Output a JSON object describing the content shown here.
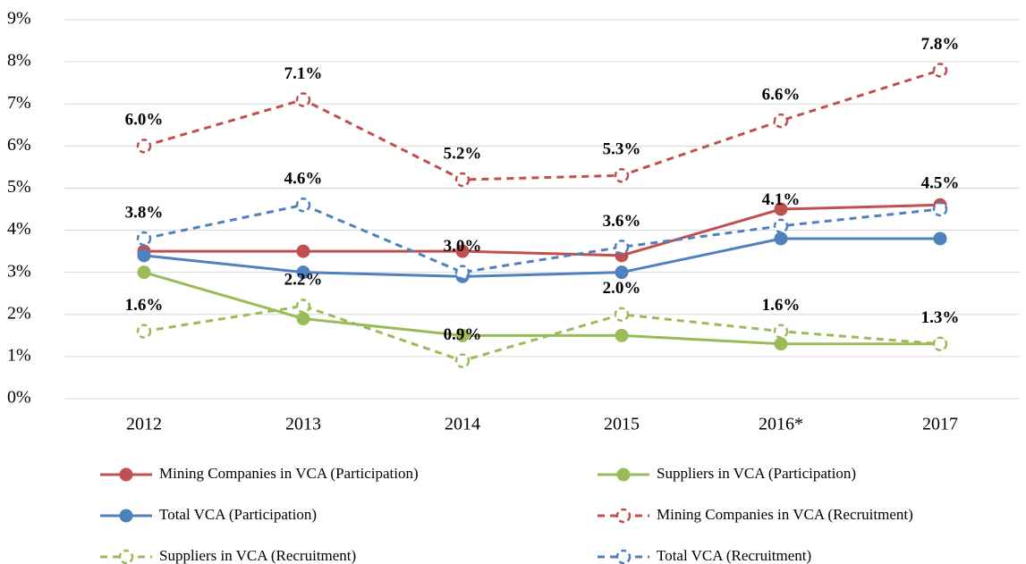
{
  "chart_data": {
    "type": "line",
    "categories": [
      "2012",
      "2013",
      "2014",
      "2015",
      "2016*",
      "2017"
    ],
    "ylim": [
      0,
      9
    ],
    "yticks": [
      {
        "value": 0,
        "label": "0%"
      },
      {
        "value": 1,
        "label": "1%"
      },
      {
        "value": 2,
        "label": "2%"
      },
      {
        "value": 3,
        "label": "3%"
      },
      {
        "value": 4,
        "label": "4%"
      },
      {
        "value": 5,
        "label": "5%"
      },
      {
        "value": 6,
        "label": "6%"
      },
      {
        "value": 7,
        "label": "7%"
      },
      {
        "value": 8,
        "label": "8%"
      },
      {
        "value": 9,
        "label": "9%"
      }
    ],
    "grid": true,
    "legend": "bottom",
    "series": [
      {
        "name": "Mining Companies in VCA (Participation)",
        "color": "#c0504d",
        "line_style": "solid",
        "values": [
          3.5,
          3.5,
          3.5,
          3.4,
          4.5,
          4.6
        ]
      },
      {
        "name": "Suppliers in VCA (Participation)",
        "color": "#9bbb59",
        "line_style": "solid",
        "values": [
          3.0,
          1.9,
          1.5,
          1.5,
          1.3,
          1.3
        ]
      },
      {
        "name": "Total VCA (Participation)",
        "color": "#4f81bd",
        "line_style": "solid",
        "values": [
          3.4,
          3.0,
          2.9,
          3.0,
          3.8,
          3.8
        ]
      },
      {
        "name": "Mining Companies in VCA (Recruitment)",
        "color": "#c0504d",
        "line_style": "dashed",
        "values": [
          6.0,
          7.1,
          5.2,
          5.3,
          6.6,
          7.8
        ],
        "value_labels": [
          "6.0%",
          "7.1%",
          "5.2%",
          "5.3%",
          "6.6%",
          "7.8%"
        ]
      },
      {
        "name": "Suppliers in VCA (Recruitment)",
        "color": "#9bbb59",
        "line_style": "dashed",
        "values": [
          1.6,
          2.2,
          0.9,
          2.0,
          1.6,
          1.3
        ],
        "value_labels": [
          "1.6%",
          "2.2%",
          "0.9%",
          "2.0%",
          "1.6%",
          "1.3%"
        ]
      },
      {
        "name": "Total VCA (Recruitment)",
        "color": "#4f81bd",
        "line_style": "dashed",
        "values": [
          3.8,
          4.6,
          3.0,
          3.6,
          4.1,
          4.5
        ],
        "value_labels": [
          "3.8%",
          "4.6%",
          "3.0%",
          "3.6%",
          "4.1%",
          "4.5%"
        ]
      }
    ]
  }
}
